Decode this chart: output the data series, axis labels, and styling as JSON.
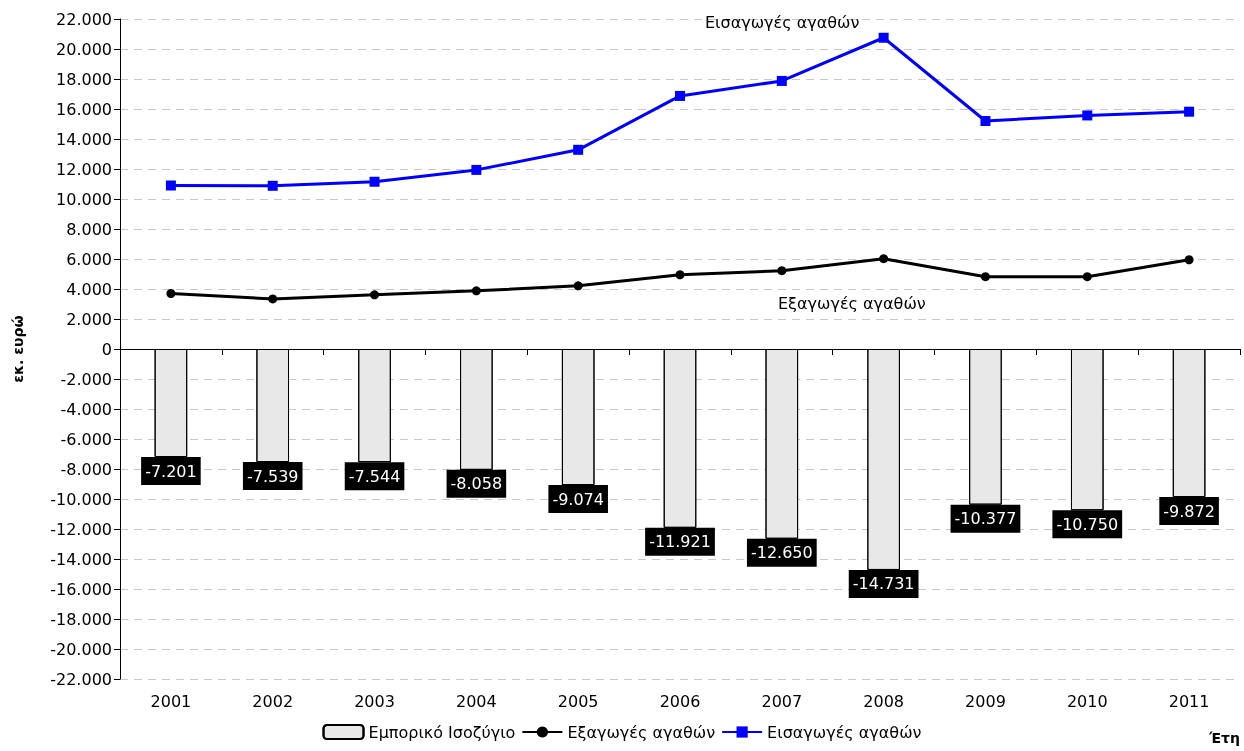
{
  "chart_data": {
    "type": "bar",
    "xlabel": "Έτη",
    "ylabel": "εκ. ευρώ",
    "categories": [
      "2001",
      "2002",
      "2003",
      "2004",
      "2005",
      "2006",
      "2007",
      "2008",
      "2009",
      "2010",
      "2011"
    ],
    "series": [
      {
        "name": "Εμπορικό Ισοζύγιο",
        "color": "#e8e8e8",
        "values": [
          -7201,
          -7539,
          -7544,
          -8058,
          -9074,
          -11921,
          -12650,
          -14731,
          -10377,
          -10750,
          -9872
        ],
        "value_labels": [
          "-7.201",
          "-7.539",
          "-7.544",
          "-8.058",
          "-9.074",
          "-11.921",
          "-12.650",
          "-14.731",
          "-10.377",
          "-10.750",
          "-9.872"
        ]
      },
      {
        "name": "Εξαγωγές αγαθών",
        "type": "line",
        "color": "#000000",
        "marker": "circle",
        "values": [
          3700,
          3340,
          3610,
          3880,
          4210,
          4950,
          5220,
          6020,
          4820,
          4820,
          5950
        ]
      },
      {
        "name": "Εισαγωγές αγαθών",
        "type": "line",
        "color": "#0000ff",
        "marker": "square",
        "values": [
          10900,
          10880,
          11150,
          11940,
          13280,
          16870,
          17870,
          20750,
          15200,
          15570,
          15820
        ]
      }
    ],
    "ylim": [
      -22000,
      22000
    ],
    "yticks": [
      {
        "value": -22000,
        "label": "-22.000"
      },
      {
        "value": -20000,
        "label": "-20.000"
      },
      {
        "value": -18000,
        "label": "-18.000"
      },
      {
        "value": -16000,
        "label": "-16.000"
      },
      {
        "value": -14000,
        "label": "-14.000"
      },
      {
        "value": -12000,
        "label": "-12.000"
      },
      {
        "value": -10000,
        "label": "-10.000"
      },
      {
        "value": -8000,
        "label": "-8.000"
      },
      {
        "value": -6000,
        "label": "-6.000"
      },
      {
        "value": -4000,
        "label": "-4.000"
      },
      {
        "value": -2000,
        "label": "-2.000"
      },
      0,
      {
        "value": 2000,
        "label": "2.000"
      },
      {
        "value": 4000,
        "label": "4.000"
      },
      {
        "value": 6000,
        "label": "6.000"
      },
      {
        "value": 8000,
        "label": "8.000"
      },
      {
        "value": 10000,
        "label": "10.000"
      },
      {
        "value": 12000,
        "label": "12.000"
      },
      {
        "value": 14000,
        "label": "14.000"
      },
      {
        "value": 16000,
        "label": "16.000"
      },
      {
        "value": 18000,
        "label": "18.000"
      },
      {
        "value": 20000,
        "label": "20.000"
      },
      {
        "value": 22000,
        "label": "22.000"
      }
    ],
    "grid": "y",
    "legend": "bottom",
    "line_style": "solid",
    "annotations": [
      "Εισαγωγές αγαθών",
      "Εξαγωγές αγαθών"
    ]
  }
}
